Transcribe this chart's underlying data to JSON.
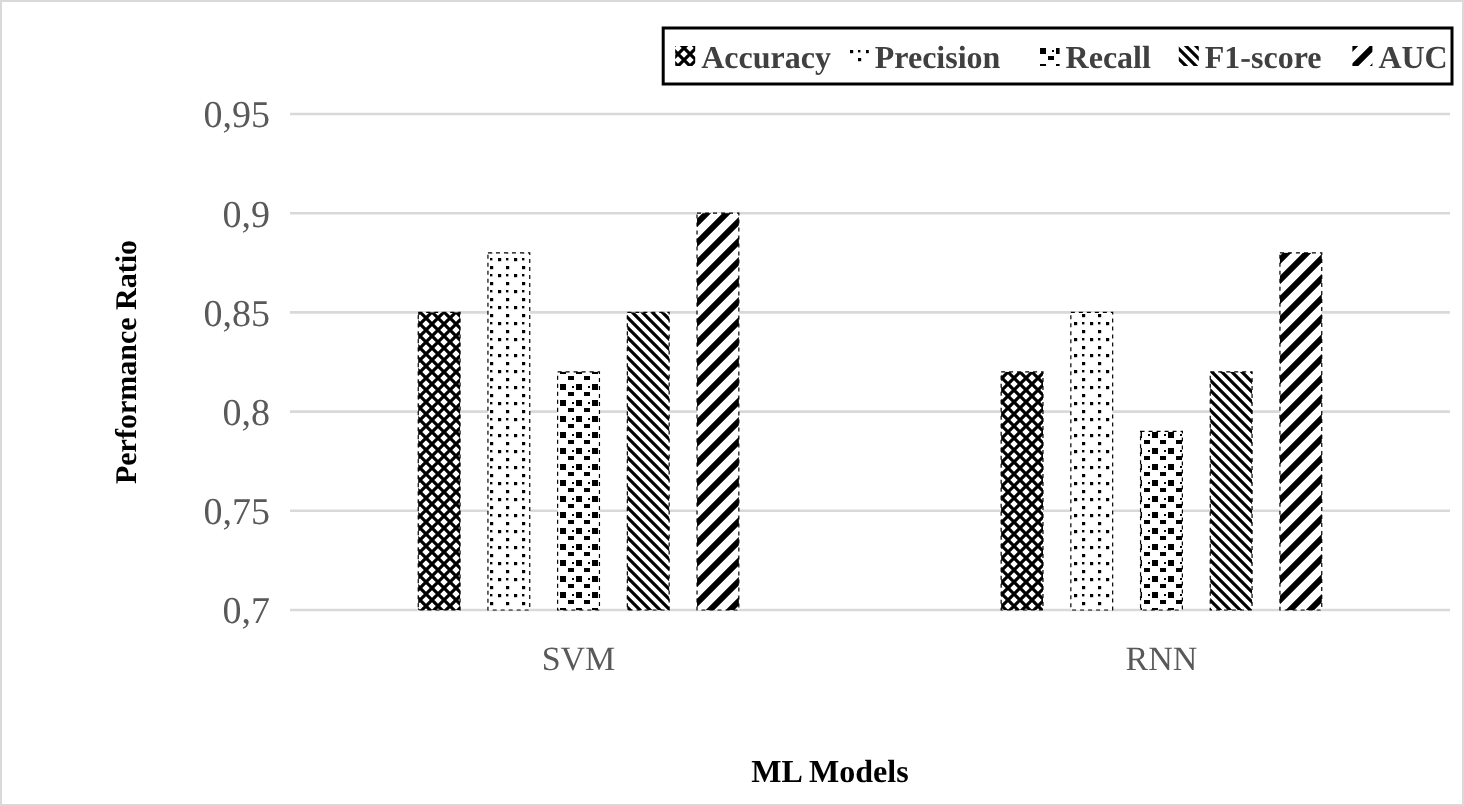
{
  "chart_data": {
    "type": "bar",
    "xlabel": "ML Models",
    "ylabel": "Performance Ratio",
    "categories": [
      "SVM",
      "RNN"
    ],
    "series": [
      {
        "name": "Accuracy",
        "color": "#000000",
        "values": [
          0.85,
          0.82
        ]
      },
      {
        "name": "Precision",
        "color": "#000000",
        "values": [
          0.88,
          0.85
        ]
      },
      {
        "name": "Recall",
        "color": "#000000",
        "values": [
          0.82,
          0.79
        ]
      },
      {
        "name": "F1-score",
        "color": "#000000",
        "values": [
          0.85,
          0.82
        ]
      },
      {
        "name": "AUC",
        "color": "#000000",
        "values": [
          0.9,
          0.88
        ]
      }
    ],
    "ylim": [
      0.7,
      0.95
    ],
    "yticks": [
      {
        "value": 0.7,
        "label": "0,7"
      },
      {
        "value": 0.75,
        "label": "0,75"
      },
      {
        "value": 0.8,
        "label": "0,8"
      },
      {
        "value": 0.85,
        "label": "0,85"
      },
      {
        "value": 0.9,
        "label": "0,9"
      },
      {
        "value": 0.95,
        "label": "0,95"
      }
    ],
    "grid": "y",
    "legend": "top right"
  }
}
